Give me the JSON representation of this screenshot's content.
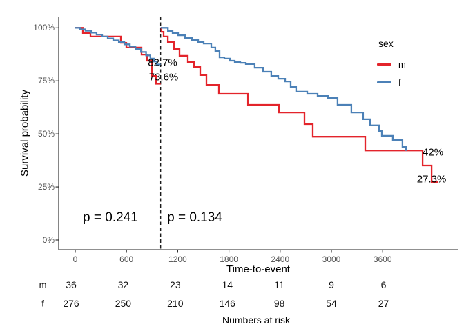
{
  "chart_data": {
    "type": "line",
    "subtype": "kaplan-meier-step",
    "title": "",
    "xlabel": "Time-to-event",
    "ylabel": "Survival probability",
    "xticks": [
      0,
      600,
      1200,
      1800,
      2400,
      3000,
      3600
    ],
    "yticks": [
      {
        "value": 0,
        "label": "0%"
      },
      {
        "value": 25,
        "label": "25%"
      },
      {
        "value": 50,
        "label": "50%"
      },
      {
        "value": 75,
        "label": "75%"
      },
      {
        "value": 100,
        "label": "100%"
      }
    ],
    "xlim": [
      0,
      4490
    ],
    "ylim": [
      0,
      100
    ],
    "grid": false,
    "legend_position": "right",
    "vline": {
      "t": 1000,
      "style": "dashed",
      "color": "#1a1a1a"
    },
    "series": [
      {
        "name": "m pre-landmark",
        "group": "m",
        "color": "#e3242b",
        "points": [
          [
            0,
            100
          ],
          [
            89,
            97.5
          ],
          [
            178,
            95.9
          ],
          [
            534,
            92.9
          ],
          [
            598,
            90.7
          ],
          [
            776,
            87.4
          ],
          [
            841,
            84.5
          ],
          [
            898,
            77.3
          ],
          [
            946,
            73.6
          ],
          [
            1000,
            73.6
          ]
        ]
      },
      {
        "name": "m post-landmark",
        "group": "m",
        "color": "#e3242b",
        "points": [
          [
            1000,
            100
          ],
          [
            1010,
            98.1
          ],
          [
            1035,
            95.9
          ],
          [
            1084,
            93.3
          ],
          [
            1156,
            90
          ],
          [
            1221,
            86.8
          ],
          [
            1318,
            83.8
          ],
          [
            1391,
            81.6
          ],
          [
            1464,
            77.7
          ],
          [
            1536,
            73.1
          ],
          [
            1682,
            68.9
          ],
          [
            2022,
            63.7
          ],
          [
            2386,
            60.1
          ],
          [
            2685,
            54.6
          ],
          [
            2782,
            48.7
          ],
          [
            3396,
            42.2
          ],
          [
            4068,
            35.1
          ],
          [
            4173,
            27.3
          ],
          [
            4246,
            27.3
          ]
        ]
      },
      {
        "name": "f pre-landmark",
        "group": "f",
        "color": "#4c81b7",
        "points": [
          [
            0,
            100
          ],
          [
            55,
            99.3
          ],
          [
            120,
            98.6
          ],
          [
            185,
            97.7
          ],
          [
            250,
            96.8
          ],
          [
            315,
            95.9
          ],
          [
            380,
            95
          ],
          [
            445,
            94.1
          ],
          [
            510,
            93.2
          ],
          [
            575,
            92.2
          ],
          [
            640,
            91.2
          ],
          [
            705,
            90
          ],
          [
            770,
            88.6
          ],
          [
            830,
            87
          ],
          [
            880,
            85.5
          ],
          [
            920,
            84.1
          ],
          [
            955,
            82.7
          ],
          [
            1000,
            82.7
          ]
        ]
      },
      {
        "name": "f post-landmark",
        "group": "f",
        "color": "#4c81b7",
        "points": [
          [
            1000,
            100
          ],
          [
            1085,
            98.5
          ],
          [
            1140,
            97.5
          ],
          [
            1205,
            96.5
          ],
          [
            1286,
            95.2
          ],
          [
            1367,
            94.2
          ],
          [
            1439,
            93.3
          ],
          [
            1504,
            92.6
          ],
          [
            1593,
            90.7
          ],
          [
            1641,
            89
          ],
          [
            1690,
            86.1
          ],
          [
            1747,
            85.5
          ],
          [
            1811,
            84.5
          ],
          [
            1868,
            83.8
          ],
          [
            1933,
            83.5
          ],
          [
            1997,
            82.9
          ],
          [
            2102,
            81.2
          ],
          [
            2199,
            79.3
          ],
          [
            2296,
            77.3
          ],
          [
            2377,
            76
          ],
          [
            2458,
            74.7
          ],
          [
            2523,
            72.2
          ],
          [
            2587,
            69.9
          ],
          [
            2717,
            68.9
          ],
          [
            2838,
            67.9
          ],
          [
            2959,
            66.9
          ],
          [
            3072,
            63.7
          ],
          [
            3234,
            60.1
          ],
          [
            3371,
            56.9
          ],
          [
            3452,
            54
          ],
          [
            3557,
            51.3
          ],
          [
            3590,
            49.1
          ],
          [
            3719,
            47.1
          ],
          [
            3832,
            43.9
          ],
          [
            3873,
            42
          ]
        ]
      }
    ],
    "annotations": [
      {
        "text": "82.7%",
        "t": 1023,
        "s": 83.5,
        "size": 15
      },
      {
        "text": "73.6%",
        "t": 1035,
        "s": 76.7,
        "size": 15
      },
      {
        "text": "42%",
        "t": 4189,
        "s": 41.3,
        "size": 15
      },
      {
        "text": "27.3%",
        "t": 4173,
        "s": 28.6,
        "size": 15
      },
      {
        "text": "p = 0.241",
        "t": 412,
        "s": 10.4,
        "size": 19
      },
      {
        "text": "p = 0.134",
        "t": 1399,
        "s": 10.4,
        "size": 19
      }
    ]
  },
  "legend": {
    "title": "sex",
    "entries": [
      {
        "label": "m",
        "color": "#e3242b"
      },
      {
        "label": "f",
        "color": "#4c81b7"
      }
    ]
  },
  "risk_table": {
    "caption": "Numbers at risk",
    "times": [
      0,
      600,
      1200,
      1800,
      2400,
      3000,
      3600
    ],
    "rows": [
      {
        "label": "m",
        "values": [
          36,
          32,
          23,
          14,
          11,
          9,
          6
        ]
      },
      {
        "label": "f",
        "values": [
          276,
          250,
          210,
          146,
          98,
          54,
          27
        ]
      }
    ]
  }
}
